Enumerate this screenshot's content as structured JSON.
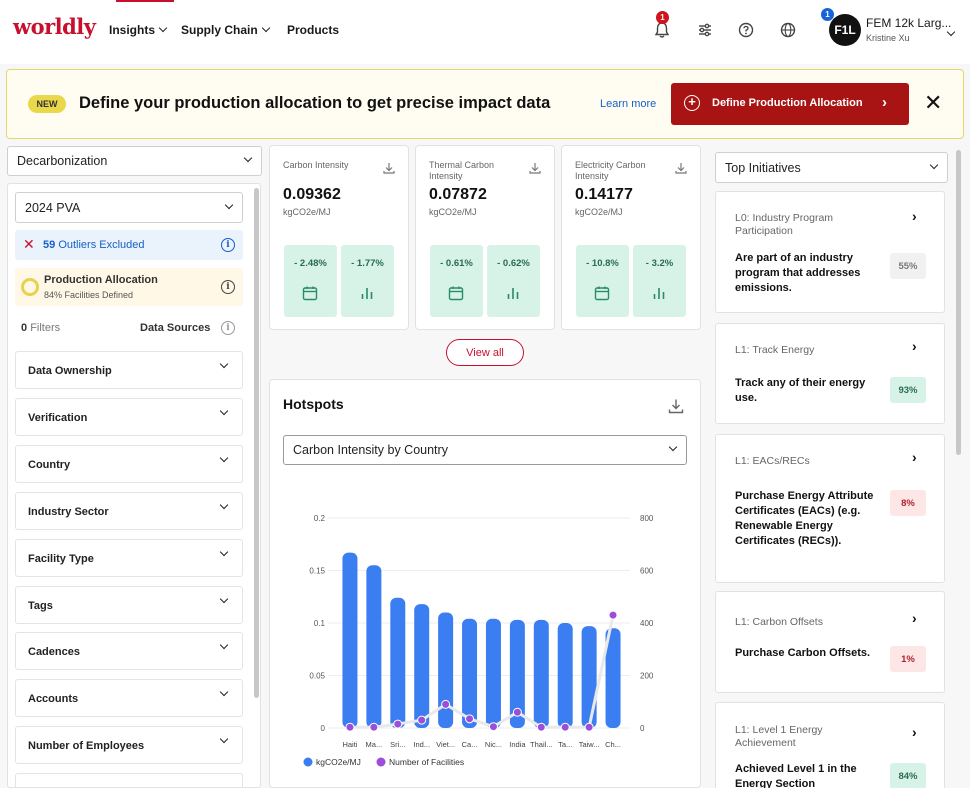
{
  "header": {
    "logo": "worldly",
    "nav": [
      {
        "label": "Insights"
      },
      {
        "label": "Supply Chain"
      },
      {
        "label": "Products"
      }
    ],
    "notification_count": "1",
    "account_badge": "1",
    "avatar_initials": "F1L",
    "user_title": "FEM 12k Larg...",
    "user_name": "Kristine Xu"
  },
  "banner": {
    "tag": "NEW",
    "title": "Define your production allocation to get precise impact data",
    "learn_more": "Learn more",
    "cta_label": "Define Production Allocation",
    "close": "✕"
  },
  "left": {
    "module_select": "Decarbonization",
    "period_select": "2024 PVA",
    "outliers_count": "59",
    "outliers_label": "Outliers Excluded",
    "allocation_title": "Production Allocation",
    "allocation_sub": "84% Facilities Defined",
    "filters_count": "0",
    "filters_label": "Filters",
    "data_sources": "Data Sources",
    "filter_groups": [
      "Data Ownership",
      "Verification",
      "Country",
      "Industry Sector",
      "Facility Type",
      "Tags",
      "Cadences",
      "Accounts",
      "Number of Employees"
    ]
  },
  "cards": [
    {
      "title": "Carbon Intensity",
      "value": "0.09362",
      "unit": "kgCO2e/MJ",
      "change_a": "- 2.48%",
      "change_b": "- 1.77%"
    },
    {
      "title": "Thermal Carbon Intensity",
      "value": "0.07872",
      "unit": "kgCO2e/MJ",
      "change_a": "- 0.61%",
      "change_b": "- 0.62%"
    },
    {
      "title": "Electricity Carbon Intensity",
      "value": "0.14177",
      "unit": "kgCO2e/MJ",
      "change_a": "- 10.8%",
      "change_b": "- 3.2%"
    }
  ],
  "view_all": "View all",
  "hotspots": {
    "title": "Hotspots",
    "select": "Carbon Intensity by Country"
  },
  "chart_data": {
    "type": "bar",
    "categories": [
      "Haiti",
      "Ma...",
      "Sri...",
      "Ind...",
      "Viet...",
      "Ca...",
      "Nic...",
      "India",
      "Thail...",
      "Ta...",
      "Taiw...",
      "Ch..."
    ],
    "series": [
      {
        "name": "kgCO2e/MJ",
        "type": "bar",
        "axis": "left",
        "color": "#3b7ef2",
        "values": [
          0.167,
          0.155,
          0.124,
          0.118,
          0.11,
          0.104,
          0.104,
          0.103,
          0.103,
          0.1,
          0.097,
          0.095
        ]
      },
      {
        "name": "Number of Facilities",
        "type": "line",
        "axis": "right",
        "color": "#9b4ddb",
        "values": [
          3,
          3,
          15,
          30,
          90,
          35,
          5,
          60,
          3,
          3,
          3,
          430
        ]
      }
    ],
    "y_left": {
      "ylim": [
        0,
        0.2
      ],
      "ticks": [
        "0",
        "0.05",
        "0.1",
        "0.15",
        "0.2"
      ]
    },
    "y_right": {
      "ylim": [
        0,
        800
      ],
      "ticks": [
        "0",
        "200",
        "400",
        "600",
        "800"
      ]
    },
    "grid": true,
    "legend_position": "bottom-left"
  },
  "initiatives": {
    "select": "Top Initiatives",
    "items": [
      {
        "level": "L0: Industry Program Participation",
        "desc": "Are part of an industry program that addresses emissions.",
        "pct": "55%",
        "tone": "grey"
      },
      {
        "level": "L1: Track Energy",
        "desc": "Track any of their energy use.",
        "pct": "93%",
        "tone": "green"
      },
      {
        "level": "L1: EACs/RECs",
        "desc": "Purchase Energy Attribute Certificates (EACs) (e.g. Renewable Energy Certificates (RECs)).",
        "pct": "8%",
        "tone": "red"
      },
      {
        "level": "L1: Carbon Offsets",
        "desc": "Purchase Carbon Offsets.",
        "pct": "1%",
        "tone": "red"
      },
      {
        "level": "L1: Level 1 Energy Achievement",
        "desc": "Achieved Level 1 in the Energy Section",
        "pct": "84%",
        "tone": "green"
      }
    ]
  }
}
